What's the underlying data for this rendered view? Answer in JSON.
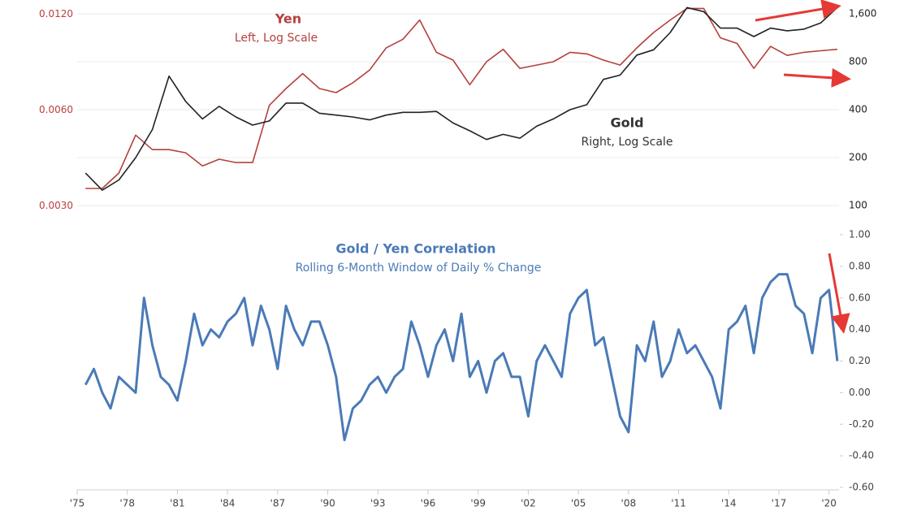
{
  "chart_data": [
    {
      "type": "line",
      "yscale": "log",
      "y2scale": "log",
      "grid": true,
      "ylim": [
        0.0028,
        0.0129
      ],
      "yticks": [
        {
          "value": 0.003,
          "label": "0.0030"
        },
        {
          "value": 0.006,
          "label": "0.0060"
        },
        {
          "value": 0.012,
          "label": "0.0120"
        }
      ],
      "y2lim": [
        87,
        1840
      ],
      "y2ticks": [
        100,
        200,
        400,
        800,
        {
          "value": 1600,
          "label": "1,600"
        }
      ],
      "xlim": [
        1975,
        2020.6
      ],
      "annotations": [
        {
          "text": "Yen",
          "color": "#b5403e"
        },
        {
          "text": "Left, Log Scale",
          "color": "#b5403e"
        },
        {
          "text": "Gold",
          "color": "#333333"
        },
        {
          "text": "Right, Log Scale",
          "color": "#333333"
        }
      ],
      "x": [
        1975.5,
        1976.5,
        1977.5,
        1978.5,
        1979.5,
        1980.5,
        1981.5,
        1982.5,
        1983.5,
        1984.5,
        1985.5,
        1986.5,
        1987.5,
        1988.5,
        1989.5,
        1990.5,
        1991.5,
        1992.5,
        1993.5,
        1994.5,
        1995.5,
        1996.5,
        1997.5,
        1998.5,
        1999.5,
        2000.5,
        2001.5,
        2002.5,
        2003.5,
        2004.5,
        2005.5,
        2006.5,
        2007.5,
        2008.5,
        2009.5,
        2010.5,
        2011.5,
        2012.5,
        2013.5,
        2014.5,
        2015.5,
        2016.5,
        2017.5,
        2018.5,
        2019.5,
        2020.5
      ],
      "series": [
        {
          "name": "Yen",
          "color": "#b5403e",
          "axis": "y",
          "values": [
            0.0034,
            0.0034,
            0.0038,
            0.005,
            0.0045,
            0.0045,
            0.0044,
            0.004,
            0.0042,
            0.0041,
            0.0041,
            0.0062,
            0.007,
            0.0078,
            0.007,
            0.0068,
            0.0073,
            0.008,
            0.0094,
            0.01,
            0.0115,
            0.0091,
            0.0086,
            0.0072,
            0.0085,
            0.0093,
            0.0081,
            0.0083,
            0.0085,
            0.0091,
            0.009,
            0.0086,
            0.0083,
            0.0094,
            0.0105,
            0.0115,
            0.0125,
            0.0125,
            0.0101,
            0.0097,
            0.0081,
            0.0095,
            0.0089,
            0.0091,
            0.0092,
            0.0093
          ]
        },
        {
          "name": "Gold",
          "color": "#222222",
          "axis": "y2",
          "values": [
            160,
            125,
            145,
            200,
            300,
            650,
            450,
            350,
            420,
            360,
            320,
            340,
            440,
            440,
            380,
            370,
            360,
            345,
            370,
            385,
            385,
            390,
            330,
            295,
            260,
            280,
            265,
            315,
            350,
            400,
            430,
            620,
            660,
            880,
            950,
            1220,
            1750,
            1650,
            1300,
            1300,
            1150,
            1300,
            1250,
            1280,
            1400,
            1750
          ]
        }
      ]
    },
    {
      "type": "line",
      "title": "Gold / Yen Correlation",
      "subtitle": "Rolling 6-Month Window of Daily % Change",
      "yaxis_side": "right",
      "ylim": [
        -0.6,
        1.0
      ],
      "yticks": [
        {
          "value": -0.6,
          "label": "-0.60"
        },
        {
          "value": -0.4,
          "label": "-0.40"
        },
        {
          "value": -0.2,
          "label": "-0.20"
        },
        {
          "value": 0,
          "label": "0.00"
        },
        {
          "value": 0.2,
          "label": "0.20"
        },
        {
          "value": 0.4,
          "label": "0.40"
        },
        {
          "value": 0.6,
          "label": "0.60"
        },
        {
          "value": 0.8,
          "label": "0.80"
        },
        {
          "value": 1,
          "label": "1.00"
        }
      ],
      "xlim": [
        1975,
        2020.6
      ],
      "xticks": [
        {
          "value": 1975,
          "label": "'75"
        },
        {
          "value": 1978,
          "label": "'78"
        },
        {
          "value": 1981,
          "label": "'81"
        },
        {
          "value": 1984,
          "label": "'84"
        },
        {
          "value": 1987,
          "label": "'87"
        },
        {
          "value": 1990,
          "label": "'90"
        },
        {
          "value": 1993,
          "label": "'93"
        },
        {
          "value": 1996,
          "label": "'96"
        },
        {
          "value": 1999,
          "label": "'99"
        },
        {
          "value": 2002,
          "label": "'02"
        },
        {
          "value": 2005,
          "label": "'05"
        },
        {
          "value": 2008,
          "label": "'08"
        },
        {
          "value": 2011,
          "label": "'11"
        },
        {
          "value": 2014,
          "label": "'14"
        },
        {
          "value": 2017,
          "label": "'17"
        },
        {
          "value": 2020,
          "label": "'20"
        }
      ],
      "x": [
        1975.5,
        1976,
        1976.5,
        1977,
        1977.5,
        1978,
        1978.5,
        1979,
        1979.5,
        1980,
        1980.5,
        1981,
        1981.5,
        1982,
        1982.5,
        1983,
        1983.5,
        1984,
        1984.5,
        1985,
        1985.5,
        1986,
        1986.5,
        1987,
        1987.5,
        1988,
        1988.5,
        1989,
        1989.5,
        1990,
        1990.5,
        1991,
        1991.5,
        1992,
        1992.5,
        1993,
        1993.5,
        1994,
        1994.5,
        1995,
        1995.5,
        1996,
        1996.5,
        1997,
        1997.5,
        1998,
        1998.5,
        1999,
        1999.5,
        2000,
        2000.5,
        2001,
        2001.5,
        2002,
        2002.5,
        2003,
        2003.5,
        2004,
        2004.5,
        2005,
        2005.5,
        2006,
        2006.5,
        2007,
        2007.5,
        2008,
        2008.5,
        2009,
        2009.5,
        2010,
        2010.5,
        2011,
        2011.5,
        2012,
        2012.5,
        2013,
        2013.5,
        2014,
        2014.5,
        2015,
        2015.5,
        2016,
        2016.5,
        2017,
        2017.5,
        2018,
        2018.5,
        2019,
        2019.5,
        2020,
        2020.5
      ],
      "series": [
        {
          "name": "Gold / Yen Correlation",
          "color": "#4a7ab7",
          "axis": "y",
          "values": [
            0.05,
            0.15,
            0,
            -0.1,
            0.1,
            0.05,
            0,
            0.6,
            0.3,
            0.1,
            0.05,
            -0.05,
            0.2,
            0.5,
            0.3,
            0.4,
            0.35,
            0.45,
            0.5,
            0.6,
            0.3,
            0.55,
            0.4,
            0.15,
            0.55,
            0.4,
            0.3,
            0.45,
            0.45,
            0.3,
            0.1,
            -0.3,
            -0.1,
            -0.05,
            0.05,
            0.1,
            0,
            0.1,
            0.15,
            0.45,
            0.3,
            0.1,
            0.3,
            0.4,
            0.2,
            0.5,
            0.1,
            0.2,
            0,
            0.2,
            0.25,
            0.1,
            0.1,
            -0.15,
            0.2,
            0.3,
            0.2,
            0.1,
            0.5,
            0.6,
            0.65,
            0.3,
            0.35,
            0.1,
            -0.15,
            -0.25,
            0.3,
            0.2,
            0.45,
            0.1,
            0.2,
            0.4,
            0.25,
            0.3,
            0.2,
            0.1,
            -0.1,
            0.4,
            0.45,
            0.55,
            0.25,
            0.6,
            0.7,
            0.75,
            0.75,
            0.55,
            0.5,
            0.25,
            0.6,
            0.65,
            0.2
          ]
        }
      ]
    }
  ]
}
